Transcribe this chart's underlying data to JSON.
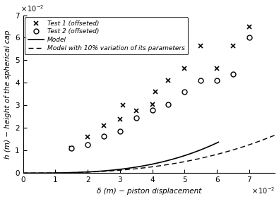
{
  "xlabel": "δ (m) − piston displacement",
  "ylabel": "h (m) − height of the spherical cap",
  "xlim": [
    0,
    0.078
  ],
  "ylim": [
    0,
    0.07
  ],
  "x_scale": 0.01,
  "y_scale": 0.01,
  "test1_x": [
    1.5,
    2.0,
    2.5,
    3.0,
    3.1,
    3.5,
    4.0,
    4.1,
    4.5,
    5.0,
    5.5,
    6.0,
    6.5,
    7.0
  ],
  "test1_y": [
    1.1,
    1.6,
    2.1,
    2.4,
    3.0,
    2.75,
    3.05,
    3.6,
    4.1,
    4.65,
    5.65,
    4.65,
    5.65,
    6.5
  ],
  "test2_x": [
    1.5,
    2.0,
    2.5,
    3.0,
    3.5,
    4.0,
    4.5,
    5.0,
    5.5,
    6.0,
    6.5,
    7.0
  ],
  "test2_y": [
    1.1,
    1.25,
    1.65,
    1.85,
    2.45,
    2.8,
    3.05,
    3.6,
    4.1,
    4.1,
    4.4,
    6.0
  ],
  "legend_test1": "Test 1 (offseted)",
  "legend_test2": "Test 2 (offseted)",
  "legend_model": "Model",
  "legend_dashed": "Model with 10% variation of its parameters",
  "xticks": [
    0,
    1,
    2,
    3,
    4,
    5,
    6,
    7
  ],
  "yticks": [
    0,
    1,
    2,
    3,
    4,
    5,
    6,
    7
  ],
  "model_A": 62.0,
  "model_exp": 3.0,
  "dashed_A": 16.5,
  "dashed_exp": 2.7
}
